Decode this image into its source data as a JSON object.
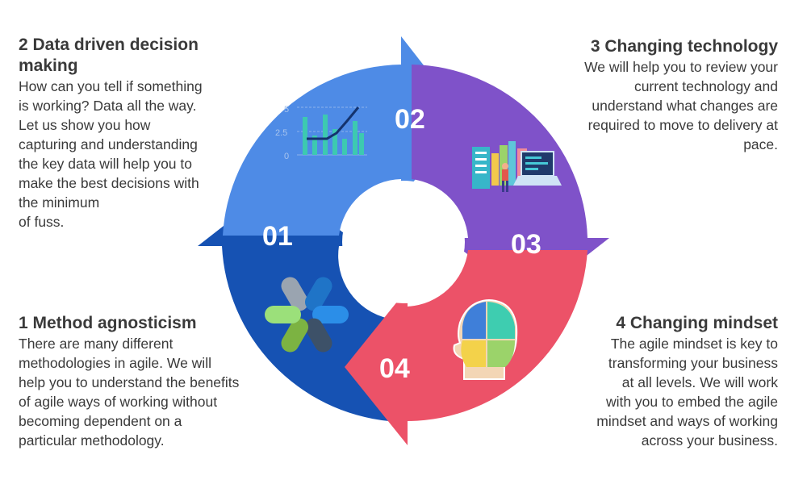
{
  "steps": [
    {
      "number": "01",
      "title": "1 Method agnosticism",
      "lines": [
        "There are  many different",
        "methodologies in agile.  We will",
        "help you to understand the benefits",
        "of agile ways of working without",
        "becoming dependent on a",
        "particular methodology."
      ],
      "color": "#1652b3",
      "icon": "pinwheel-icon"
    },
    {
      "number": "02",
      "title_lines": [
        "2 Data driven decision",
        "making"
      ],
      "lines": [
        "How can you tell if something",
        "is working? Data all the way.",
        "Let us show you how",
        "capturing and understanding",
        "the key data will help you to",
        "make the best decisions with",
        "the minimum",
        "of fuss."
      ],
      "color": "#4e8be6",
      "icon": "chart-icon"
    },
    {
      "number": "03",
      "title": "3 Changing technology",
      "lines": [
        "We will help you to review your",
        "current technology and",
        "understand what changes are",
        "required to move to delivery at",
        "pace."
      ],
      "color": "#7f52c9",
      "icon": "technology-icon"
    },
    {
      "number": "04",
      "title": "4 Changing mindset",
      "lines": [
        "The agile mindset is key to",
        "transforming your business",
        "at all levels.  We will work",
        "with you to embed the agile",
        "mindset and ways of working",
        "across your business."
      ],
      "color": "#ec5268",
      "icon": "head-mindset-icon"
    }
  ],
  "chart_icon_ticks": [
    "5",
    "2.5",
    "0"
  ]
}
